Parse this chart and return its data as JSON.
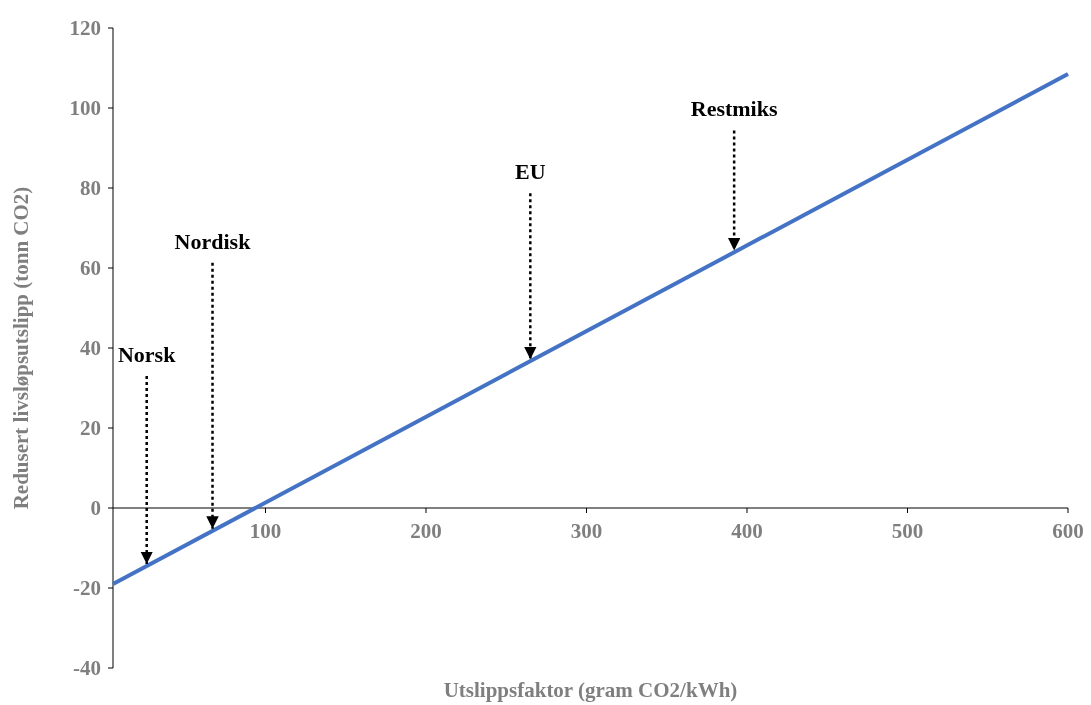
{
  "chart_data": {
    "type": "line",
    "xlabel": "Utslippsfaktor (gram CO2/kWh)",
    "ylabel": "Redusert livsløpsutslipp  (tonn CO2)",
    "x": [
      5,
      600
    ],
    "series": [
      {
        "color": "#4472c4",
        "values": [
          -19,
          108.5
        ]
      }
    ],
    "xlim": [
      5,
      600
    ],
    "xticks": [
      100,
      200,
      300,
      400,
      500,
      600
    ],
    "ylim": [
      -40,
      120
    ],
    "yticks": [
      -40,
      -20,
      0,
      20,
      40,
      60,
      80,
      100,
      120
    ],
    "grid": false,
    "marker": "none",
    "line_style": "solid",
    "annotations": [
      {
        "text": "Norsk",
        "x": 26,
        "y": -14.5
      },
      {
        "text": "Nordisk",
        "x": 67,
        "y": -5.7
      },
      {
        "text": "EU",
        "x": 265,
        "y": 36.7
      },
      {
        "text": "Restmiks",
        "x": 392,
        "y": 63.9
      }
    ]
  }
}
